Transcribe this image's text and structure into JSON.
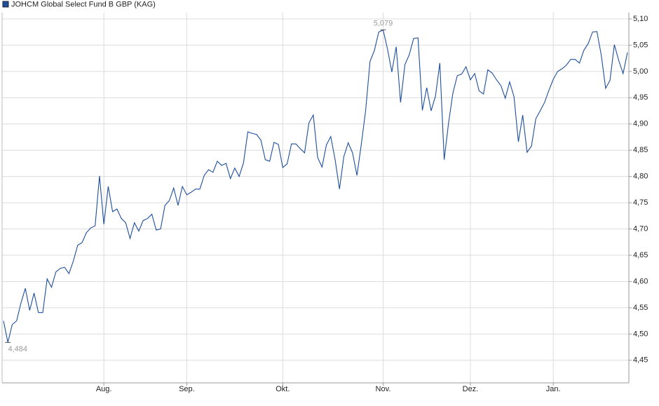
{
  "chart_data": {
    "type": "line",
    "series": [
      {
        "name": "JOHCM Global Select Fund B GBP (KAG)",
        "color": "#1f4e9c",
        "values": [
          4.525,
          4.484,
          4.518,
          4.525,
          4.559,
          4.587,
          4.545,
          4.578,
          4.541,
          4.541,
          4.605,
          4.589,
          4.618,
          4.625,
          4.627,
          4.615,
          4.639,
          4.669,
          4.674,
          4.693,
          4.702,
          4.706,
          4.801,
          4.709,
          4.781,
          4.733,
          4.738,
          4.72,
          4.712,
          4.682,
          4.712,
          4.696,
          4.716,
          4.72,
          4.728,
          4.698,
          4.7,
          4.745,
          4.754,
          4.778,
          4.745,
          4.781,
          4.765,
          4.77,
          4.776,
          4.776,
          4.802,
          4.813,
          4.808,
          4.829,
          4.821,
          4.825,
          4.796,
          4.816,
          4.8,
          4.826,
          4.885,
          4.882,
          4.88,
          4.869,
          4.832,
          4.829,
          4.865,
          4.861,
          4.817,
          4.824,
          4.862,
          4.862,
          4.853,
          4.845,
          4.902,
          4.917,
          4.836,
          4.818,
          4.86,
          4.876,
          4.832,
          4.776,
          4.838,
          4.864,
          4.845,
          4.802,
          4.861,
          4.926,
          5.019,
          5.04,
          5.075,
          5.079,
          5.043,
          4.999,
          5.047,
          4.941,
          5.013,
          5.032,
          5.063,
          5.064,
          4.926,
          4.969,
          4.925,
          4.953,
          5.016,
          4.832,
          4.902,
          4.959,
          4.992,
          4.995,
          5.009,
          4.984,
          4.996,
          4.963,
          4.957,
          5.003,
          4.997,
          4.984,
          4.973,
          4.949,
          4.98,
          4.952,
          4.866,
          4.917,
          4.846,
          4.858,
          4.91,
          4.925,
          4.941,
          4.964,
          4.985,
          5.0,
          5.005,
          5.012,
          5.023,
          5.023,
          5.016,
          5.04,
          5.053,
          5.075,
          5.076,
          5.031,
          4.968,
          4.983,
          5.051,
          5.021,
          4.996,
          5.036
        ],
        "value_labels": [
          null,
          "4,484",
          null,
          null,
          null,
          null,
          null,
          null,
          null,
          null,
          null,
          null,
          null,
          null,
          null,
          null,
          null,
          null,
          null,
          null,
          null,
          null,
          null,
          null,
          null,
          null,
          null,
          null,
          null,
          null,
          null,
          null,
          null,
          null,
          null,
          null,
          null,
          null,
          null,
          null,
          null,
          null,
          null,
          null,
          null,
          null,
          null,
          null,
          null,
          null,
          null,
          null,
          null,
          null,
          null,
          null,
          null,
          null,
          null,
          null,
          null,
          null,
          null,
          null,
          null,
          null,
          null,
          null,
          null,
          null,
          null,
          null,
          null,
          null,
          null,
          null,
          null,
          null,
          null,
          null,
          null,
          null,
          null,
          null,
          null,
          null,
          null,
          "5,079",
          null,
          null,
          null,
          null,
          null,
          null,
          null,
          null,
          null,
          null,
          null,
          null,
          null,
          null,
          null,
          null,
          null,
          null,
          null,
          null,
          null,
          null,
          null,
          null,
          null,
          null,
          null,
          null,
          null,
          null,
          null,
          null,
          null,
          null,
          null,
          null,
          null,
          null,
          null,
          null,
          null,
          null,
          null,
          null,
          null,
          null,
          null,
          null,
          null,
          null,
          null,
          null,
          null,
          null,
          null,
          null
        ]
      }
    ],
    "categories": [
      null,
      null,
      null,
      null,
      null,
      null,
      null,
      null,
      null,
      null,
      null,
      null,
      null,
      null,
      null,
      null,
      null,
      null,
      null,
      null,
      null,
      null,
      null,
      "Aug.",
      null,
      null,
      null,
      null,
      null,
      null,
      null,
      null,
      null,
      null,
      null,
      null,
      null,
      null,
      null,
      null,
      null,
      null,
      "Sep.",
      null,
      null,
      null,
      null,
      null,
      null,
      null,
      null,
      null,
      null,
      null,
      null,
      null,
      null,
      null,
      null,
      null,
      null,
      null,
      null,
      null,
      "Okt.",
      null,
      null,
      null,
      null,
      null,
      null,
      null,
      null,
      null,
      null,
      null,
      null,
      null,
      null,
      null,
      null,
      null,
      null,
      null,
      null,
      null,
      null,
      "Nov.",
      null,
      null,
      null,
      null,
      null,
      null,
      null,
      null,
      null,
      null,
      null,
      null,
      null,
      null,
      null,
      null,
      null,
      null,
      null,
      "Dez.",
      null,
      null,
      null,
      null,
      null,
      null,
      null,
      null,
      null,
      null,
      null,
      null,
      null,
      null,
      null,
      null,
      null,
      null,
      "Jan.",
      null,
      null,
      null,
      null,
      null,
      null,
      null,
      null,
      null,
      null,
      null,
      null,
      null,
      null,
      null,
      null,
      null
    ],
    "ylim": [
      4.407,
      5.112
    ],
    "yticks": [
      {
        "value": 4.45,
        "label": "4,45"
      },
      {
        "value": 4.5,
        "label": "4,50"
      },
      {
        "value": 4.55,
        "label": "4,55"
      },
      {
        "value": 4.6,
        "label": "4,60"
      },
      {
        "value": 4.65,
        "label": "4,65"
      },
      {
        "value": 4.7,
        "label": "4,70"
      },
      {
        "value": 4.75,
        "label": "4,75"
      },
      {
        "value": 4.8,
        "label": "4,80"
      },
      {
        "value": 4.85,
        "label": "4,85"
      },
      {
        "value": 4.9,
        "label": "4,90"
      },
      {
        "value": 4.95,
        "label": "4,95"
      },
      {
        "value": 5.0,
        "label": "5,00"
      },
      {
        "value": 5.05,
        "label": "5,05"
      },
      {
        "value": 5.1,
        "label": "5,10"
      }
    ],
    "grid": true,
    "legend": "top-left"
  }
}
